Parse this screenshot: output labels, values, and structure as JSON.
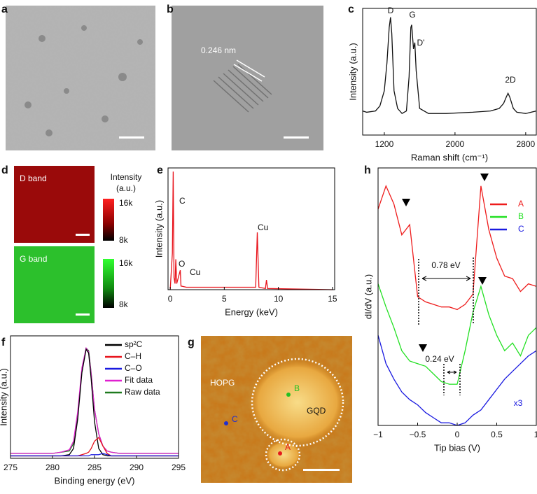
{
  "panel_labels": [
    "a",
    "b",
    "c",
    "d",
    "e",
    "f",
    "g",
    "h"
  ],
  "images": {
    "b": {
      "annotation": "0.246 nm"
    },
    "d": {
      "maps": [
        "D band",
        "G band"
      ],
      "colorbar_title": [
        "Intensity",
        "(a.u.)"
      ],
      "colorbar_ticks": [
        [
          "16k",
          "8k"
        ],
        [
          "16k",
          "8k"
        ]
      ]
    },
    "g": {
      "labels": [
        "HOPG",
        "GQD"
      ],
      "points": [
        {
          "name": "A",
          "color": "#e41a1c"
        },
        {
          "name": "B",
          "color": "#22c022"
        },
        {
          "name": "C",
          "color": "#1f2fd0"
        }
      ]
    }
  },
  "chart_data": [
    {
      "type": "line",
      "xlabel": "Raman shift (cm⁻¹)",
      "ylabel": "Intensity (a.u.)",
      "x": [
        955,
        1000,
        1100,
        1150,
        1200,
        1230,
        1255,
        1270,
        1285,
        1310,
        1350,
        1400,
        1450,
        1480,
        1500,
        1510,
        1530,
        1545,
        1560,
        1600,
        1700,
        1900,
        2200,
        2400,
        2500,
        2550,
        2580,
        2600,
        2620,
        2660,
        2700,
        2800,
        2920
      ],
      "series": [
        {
          "color": "#111111",
          "values": [
            0.19,
            0.18,
            0.19,
            0.23,
            0.35,
            0.57,
            0.85,
            0.93,
            0.8,
            0.35,
            0.21,
            0.17,
            0.19,
            0.46,
            0.85,
            0.87,
            0.68,
            0.73,
            0.51,
            0.21,
            0.17,
            0.17,
            0.18,
            0.19,
            0.21,
            0.25,
            0.3,
            0.33,
            0.3,
            0.21,
            0.18,
            0.17,
            0.19
          ]
        }
      ],
      "xlim": [
        955,
        2920
      ],
      "xticks": [
        1200,
        2000,
        2800
      ],
      "ylim": [
        0,
        1
      ],
      "annotations": [
        "D",
        "G",
        "D'",
        "2D"
      ]
    },
    {
      "type": "line",
      "xlabel": "Energy (keV)",
      "ylabel": "Intensity (a.u.)",
      "x": [
        0,
        0.2,
        0.28,
        0.35,
        0.45,
        0.52,
        0.6,
        0.93,
        1.0,
        1.5,
        7.9,
        8.05,
        8.2,
        8.8,
        8.9,
        9.0,
        15
      ],
      "series": [
        {
          "color": "#e8141c",
          "values": [
            0,
            0.3,
            0.97,
            0.1,
            0.05,
            0.25,
            0.05,
            0.16,
            0.03,
            0.02,
            0.02,
            0.47,
            0.02,
            0.01,
            0.08,
            0.01,
            0
          ]
        }
      ],
      "xlim": [
        -0.2,
        15.2
      ],
      "xticks": [
        0,
        5,
        10,
        15
      ],
      "ylim": [
        0,
        1
      ],
      "annotations": [
        "C",
        "Cu",
        "O",
        "Cu"
      ]
    },
    {
      "type": "line",
      "xlabel": "Binding energy (eV)",
      "ylabel": "Intensity (a.u.)",
      "x": [
        275,
        278,
        280,
        281,
        282,
        282.5,
        283,
        283.5,
        284,
        284.3,
        284.6,
        285,
        285.5,
        286,
        286.5,
        287,
        288,
        290,
        292,
        295
      ],
      "series": [
        {
          "name": "Raw data",
          "color": "#1f7a1f",
          "values": [
            0.04,
            0.04,
            0.04,
            0.05,
            0.06,
            0.12,
            0.35,
            0.72,
            0.9,
            0.88,
            0.7,
            0.4,
            0.2,
            0.1,
            0.06,
            0.05,
            0.04,
            0.04,
            0.04,
            0.04
          ]
        },
        {
          "name": "Fit data",
          "color": "#e020d0",
          "values": [
            0.04,
            0.04,
            0.04,
            0.05,
            0.07,
            0.14,
            0.38,
            0.74,
            0.9,
            0.87,
            0.69,
            0.4,
            0.2,
            0.1,
            0.06,
            0.05,
            0.04,
            0.04,
            0.04,
            0.04
          ]
        },
        {
          "name": "sp²C",
          "color": "#000000",
          "values": [
            0.02,
            0.02,
            0.02,
            0.02,
            0.03,
            0.08,
            0.32,
            0.7,
            0.89,
            0.86,
            0.65,
            0.3,
            0.08,
            0.03,
            0.02,
            0.02,
            0.02,
            0.02,
            0.02,
            0.02
          ]
        },
        {
          "name": "C–H",
          "color": "#e8141c",
          "values": [
            0.02,
            0.02,
            0.02,
            0.02,
            0.02,
            0.02,
            0.02,
            0.03,
            0.04,
            0.05,
            0.08,
            0.14,
            0.17,
            0.1,
            0.04,
            0.02,
            0.02,
            0.02,
            0.02,
            0.02
          ]
        },
        {
          "name": "C–O",
          "color": "#1a1ae0",
          "values": [
            0.02,
            0.02,
            0.02,
            0.02,
            0.02,
            0.02,
            0.02,
            0.02,
            0.02,
            0.02,
            0.03,
            0.03,
            0.03,
            0.04,
            0.03,
            0.02,
            0.02,
            0.02,
            0.02,
            0.02
          ]
        }
      ],
      "legend_order": [
        2,
        3,
        4,
        1,
        0
      ],
      "xlim": [
        275,
        295
      ],
      "xticks": [
        275,
        280,
        285,
        290,
        295
      ],
      "ylim": [
        0,
        1
      ]
    },
    {
      "type": "line",
      "xlabel": "Tip bias (V)",
      "ylabel": "dI/dV (a.u.)",
      "x": [
        -1,
        -0.9,
        -0.8,
        -0.7,
        -0.6,
        -0.5,
        -0.4,
        -0.3,
        -0.2,
        -0.1,
        0,
        0.1,
        0.2,
        0.3,
        0.4,
        0.5,
        0.6,
        0.7,
        0.8,
        0.9,
        1
      ],
      "series": [
        {
          "name": "A",
          "color": "#ee1c1c",
          "values": [
            0.84,
            0.93,
            0.86,
            0.74,
            0.78,
            0.5,
            0.48,
            0.47,
            0.46,
            0.46,
            0.45,
            0.47,
            0.51,
            0.93,
            0.76,
            0.65,
            0.58,
            0.57,
            0.52,
            0.55,
            0.54
          ]
        },
        {
          "name": "B",
          "color": "#22e022",
          "values": [
            0.55,
            0.46,
            0.38,
            0.29,
            0.25,
            0.24,
            0.23,
            0.2,
            0.17,
            0.16,
            0.16,
            0.29,
            0.44,
            0.54,
            0.43,
            0.35,
            0.29,
            0.32,
            0.27,
            0.35,
            0.38
          ]
        },
        {
          "name": "C",
          "color": "#1a1ae0",
          "values": [
            0.35,
            0.24,
            0.18,
            0.13,
            0.1,
            0.08,
            0.05,
            0.03,
            0.01,
            0.01,
            0.0,
            0.01,
            0.04,
            0.06,
            0.1,
            0.14,
            0.18,
            0.21,
            0.24,
            0.27,
            0.29
          ]
        }
      ],
      "xlim": [
        -1,
        1
      ],
      "xticks": [
        {
          "value": -1,
          "label": "−1"
        },
        {
          "value": -0.5,
          "label": "−0.5"
        },
        0,
        0.5,
        1
      ],
      "ylim": [
        0,
        1
      ],
      "annotations": [
        "0.78 eV",
        "0.24 eV",
        "x3"
      ]
    }
  ]
}
